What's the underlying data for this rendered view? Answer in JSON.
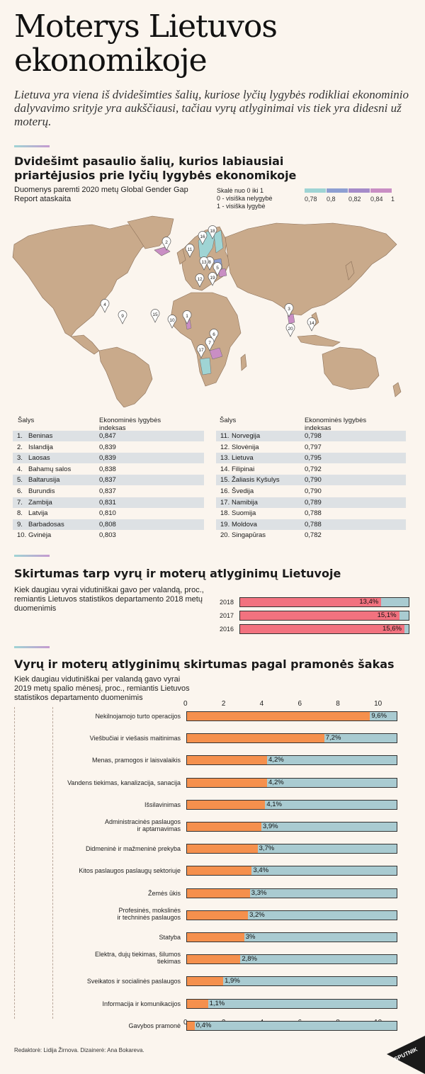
{
  "header": {
    "title": "Moterys Lietuvos ekonomikoje",
    "subtitle": "Lietuva yra viena iš dvidešimties šalių, kuriose lyčių lygybės rodikliai ekonominio dalyvavimo srityje yra aukščiausi, tačiau vyrų atlyginimai vis tiek yra didesni už moterų."
  },
  "section1": {
    "title": "Dvidešimt pasaulio šalių, kurios labiausiai priartėjusios prie lyčių lygybės ekonomikoje",
    "source": "Duomenys paremti 2020 metų Global Gender Gap Report ataskaita",
    "scale_title": "Skalė nuo 0 iki 1",
    "scale_zero": "0 - visiška nelygybė",
    "scale_one": "1 - visiška lygybė",
    "legend_labels": [
      "0,78",
      "0,8",
      "0,82",
      "0,84",
      "1"
    ],
    "legend_colors": [
      "#9fd4d4",
      "#8e9fd2",
      "#a58bc9",
      "#c98ec4"
    ],
    "col_country": "Šalys",
    "col_index": "Ekonominės lygybės indeksas",
    "map_pins": [
      "1",
      "2",
      "3",
      "4",
      "5",
      "6",
      "7",
      "8",
      "9",
      "10",
      "11",
      "12",
      "13",
      "14",
      "15",
      "16",
      "17",
      "18",
      "19",
      "20"
    ]
  },
  "chart_data": [
    {
      "type": "table",
      "title": "Dvidešimt pasaulio šalių, kurios labiausiai priartėjusios prie lyčių lygybės ekonomikoje",
      "columns": [
        "Šalys",
        "Ekonominės lygybės indeksas"
      ],
      "rows": [
        {
          "rank": "1.",
          "country": "Beninas",
          "value": "0,847"
        },
        {
          "rank": "2.",
          "country": "Islandija",
          "value": "0,839"
        },
        {
          "rank": "3.",
          "country": "Laosas",
          "value": "0,839"
        },
        {
          "rank": "4.",
          "country": "Bahamų salos",
          "value": "0,838"
        },
        {
          "rank": "5.",
          "country": "Baltarusija",
          "value": "0,837"
        },
        {
          "rank": "6.",
          "country": "Burundis",
          "value": "0,837"
        },
        {
          "rank": "7.",
          "country": "Zambija",
          "value": "0,831"
        },
        {
          "rank": "8.",
          "country": "Latvija",
          "value": "0,810"
        },
        {
          "rank": "9.",
          "country": "Barbadosas",
          "value": "0,808"
        },
        {
          "rank": "10.",
          "country": "Gvinėja",
          "value": "0,803"
        },
        {
          "rank": "11.",
          "country": "Norvegija",
          "value": "0,798"
        },
        {
          "rank": "12.",
          "country": "Slovėnija",
          "value": "0,797"
        },
        {
          "rank": "13.",
          "country": "Lietuva",
          "value": "0,795"
        },
        {
          "rank": "14.",
          "country": "Filipinai",
          "value": "0,792"
        },
        {
          "rank": "15.",
          "country": "Žaliasis Kyšulys",
          "value": "0,790"
        },
        {
          "rank": "16.",
          "country": "Švedija",
          "value": "0,790"
        },
        {
          "rank": "17.",
          "country": "Namibija",
          "value": "0,789"
        },
        {
          "rank": "18.",
          "country": "Suomija",
          "value": "0,788"
        },
        {
          "rank": "19.",
          "country": "Moldova",
          "value": "0,788"
        },
        {
          "rank": "20.",
          "country": "Singapūras",
          "value": "0,782"
        }
      ]
    },
    {
      "type": "bar",
      "title": "Skirtumas tarp vyrų ir moterų atlyginimų Lietuvoje",
      "subtitle": "Kiek daugiau vyrai vidutiniškai gavo per valandą, proc., remiantis Lietuvos statistikos departamento 2018 metų duomenimis",
      "categories": [
        "2018",
        "2017",
        "2016"
      ],
      "values": [
        13.4,
        15.1,
        15.6
      ],
      "labels": [
        "13,4%",
        "15,1%",
        "15,6%"
      ],
      "xlim": [
        0,
        16
      ],
      "bar_color": "#f2727f",
      "bg_color": "#a9cbd1"
    },
    {
      "type": "bar",
      "title": "Vyrų ir moterų atlyginimų skirtumas pagal pramonės šakas",
      "subtitle": "Kiek daugiau vidutiniškai per valandą gavo vyrai 2019 metų spalio mėnesį, proc., remiantis Lietuvos statistikos departamento duomenimis",
      "categories": [
        "Nekilnojamojo turto operacijos",
        "Viešbučiai ir viešasis maitinimas",
        "Menas, pramogos ir laisvalaikis",
        "Vandens tiekimas, kanalizacija, sanacija",
        "Išsilavinimas",
        "Administracinės paslaugos\nir aptarnavimas",
        "Didmeninė ir mažmeninė prekyba",
        "Kitos paslaugos paslaugų sektoriuje",
        "Žemės ūkis",
        "Profesinės, mokslinės\nir techninės paslaugos",
        "Statyba",
        "Elektra, dujų tiekimas, šilumos\ntiekimas",
        "Sveikatos ir socialinės paslaugos",
        "Informacija ir komunikacijos",
        "Gavybos pramonė"
      ],
      "values": [
        9.6,
        7.2,
        4.2,
        4.2,
        4.1,
        3.9,
        3.7,
        3.4,
        3.3,
        3.2,
        3.0,
        2.8,
        1.9,
        1.1,
        0.4
      ],
      "labels": [
        "9,6%",
        "7,2%",
        "4,2%",
        "4,2%",
        "4,1%",
        "3,9%",
        "3,7%",
        "3,4%",
        "3,3%",
        "3,2%",
        "3%",
        "2,8%",
        "1,9%",
        "1,1%",
        "0,4%"
      ],
      "ticks": [
        "0",
        "2",
        "4",
        "6",
        "8",
        "10"
      ],
      "xlim": [
        0,
        11
      ],
      "bar_color": "#f5904d",
      "bg_color": "#a9cbd1"
    }
  ],
  "footer": {
    "credits": "Redaktorė: Lidija Žirnova. Dizainerė: Ana Bokareva.",
    "logo_text": "SPUTNIK"
  }
}
